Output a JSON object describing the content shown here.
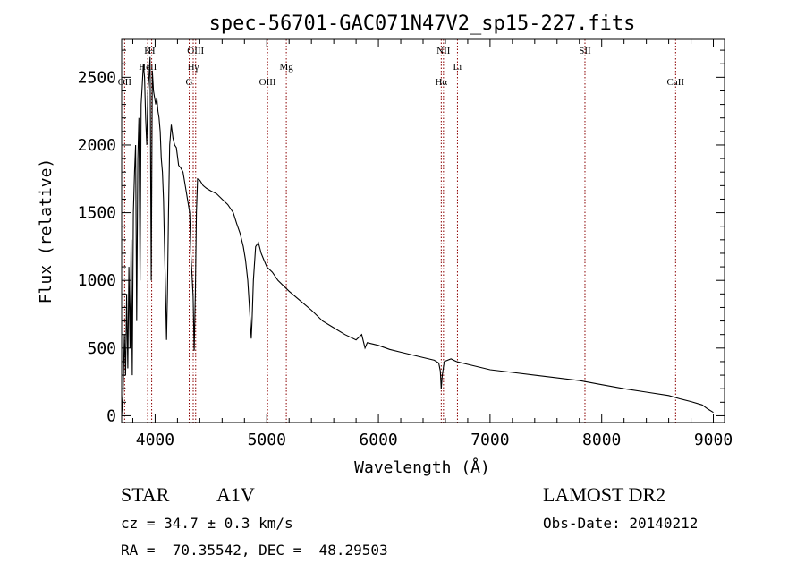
{
  "chart_data": {
    "type": "line",
    "title": "spec-56701-GAC071N47V2_sp15-227.fits",
    "xlabel": "Wavelength (Å)",
    "ylabel": "Flux (relative)",
    "xlim": [
      3700,
      9100
    ],
    "ylim": [
      -50,
      2780
    ],
    "xticks": [
      4000,
      5000,
      6000,
      7000,
      8000,
      9000
    ],
    "yticks": [
      0,
      500,
      1000,
      1500,
      2000,
      2500
    ],
    "grid": false,
    "colors": {
      "spectrum": "#000000",
      "lines": "#8b0000"
    },
    "series": [
      {
        "x": [
          3700,
          3712,
          3725,
          3735,
          3745,
          3755,
          3765,
          3775,
          3785,
          3795,
          3805,
          3815,
          3825,
          3835,
          3845,
          3855,
          3865,
          3875,
          3885,
          3895,
          3905,
          3915,
          3925,
          3935,
          3945,
          3955,
          3965,
          3975,
          3985,
          3995,
          4005,
          4015,
          4025,
          4035,
          4045,
          4055,
          4065,
          4075,
          4085,
          4095,
          4102,
          4110,
          4120,
          4130,
          4145,
          4160,
          4175,
          4190,
          4210,
          4230,
          4250,
          4270,
          4290,
          4310,
          4320,
          4330,
          4340,
          4350,
          4360,
          4370,
          4380,
          4400,
          4430,
          4460,
          4500,
          4550,
          4600,
          4650,
          4700,
          4730,
          4760,
          4790,
          4810,
          4830,
          4845,
          4855,
          4861,
          4868,
          4880,
          4900,
          4925,
          4950,
          4975,
          5000,
          5050,
          5100,
          5150,
          5200,
          5300,
          5400,
          5500,
          5600,
          5700,
          5800,
          5850,
          5880,
          5900,
          6000,
          6100,
          6200,
          6300,
          6400,
          6500,
          6540,
          6555,
          6563,
          6572,
          6590,
          6650,
          6700,
          6800,
          6900,
          7000,
          7200,
          7400,
          7600,
          7800,
          8000,
          8200,
          8400,
          8600,
          8700,
          8800,
          8900,
          8950,
          9000
        ],
        "y": [
          0,
          150,
          600,
          300,
          900,
          350,
          1100,
          500,
          1300,
          300,
          1500,
          1800,
          2000,
          700,
          1900,
          2200,
          1000,
          2300,
          2450,
          2600,
          2500,
          2200,
          2000,
          2400,
          2500,
          2650,
          1000,
          2550,
          2400,
          2350,
          2300,
          2350,
          2250,
          2200,
          2100,
          1900,
          1800,
          1600,
          1200,
          850,
          560,
          900,
          1500,
          2000,
          2150,
          2050,
          2000,
          1980,
          1850,
          1830,
          1800,
          1700,
          1600,
          1500,
          1200,
          1050,
          880,
          480,
          900,
          1500,
          1750,
          1740,
          1700,
          1680,
          1660,
          1640,
          1600,
          1560,
          1500,
          1420,
          1350,
          1250,
          1150,
          1000,
          800,
          650,
          570,
          700,
          1000,
          1250,
          1280,
          1200,
          1150,
          1100,
          1060,
          1000,
          960,
          920,
          850,
          780,
          700,
          650,
          600,
          560,
          600,
          500,
          540,
          520,
          490,
          470,
          450,
          430,
          410,
          390,
          330,
          200,
          300,
          400,
          420,
          400,
          380,
          360,
          340,
          320,
          300,
          280,
          260,
          230,
          200,
          175,
          150,
          125,
          105,
          80,
          50,
          25
        ]
      }
    ],
    "emission_lines": [
      {
        "label": "OII",
        "x": 3727,
        "row": 3
      },
      {
        "label": "HeII",
        "x": 3934,
        "row": 2
      },
      {
        "label": "K",
        "x": 3934,
        "row": 1
      },
      {
        "label": "H",
        "x": 3969,
        "row": 1
      },
      {
        "label": "OIII",
        "x": 4363,
        "row": 1
      },
      {
        "label": "Hγ",
        "x": 4341,
        "row": 2
      },
      {
        "label": "G",
        "x": 4305,
        "row": 3
      },
      {
        "label": "OIII",
        "x": 5007,
        "row": 3
      },
      {
        "label": "Mg",
        "x": 5175,
        "row": 2
      },
      {
        "label": "NII",
        "x": 6583,
        "row": 1
      },
      {
        "label": "Hα",
        "x": 6563,
        "row": 3
      },
      {
        "label": "Li",
        "x": 6708,
        "row": 2
      },
      {
        "label": "SII",
        "x": 7850,
        "row": 1
      },
      {
        "label": "CaII",
        "x": 8662,
        "row": 3
      }
    ]
  },
  "info": {
    "object_type": "STAR",
    "subclass": "A1V",
    "survey": "LAMOST DR2",
    "redshift": "cz = 34.7 ± 0.3 km/s",
    "obs_date": "Obs-Date: 20140212",
    "coords": "RA =  70.35542, DEC =  48.29503"
  }
}
